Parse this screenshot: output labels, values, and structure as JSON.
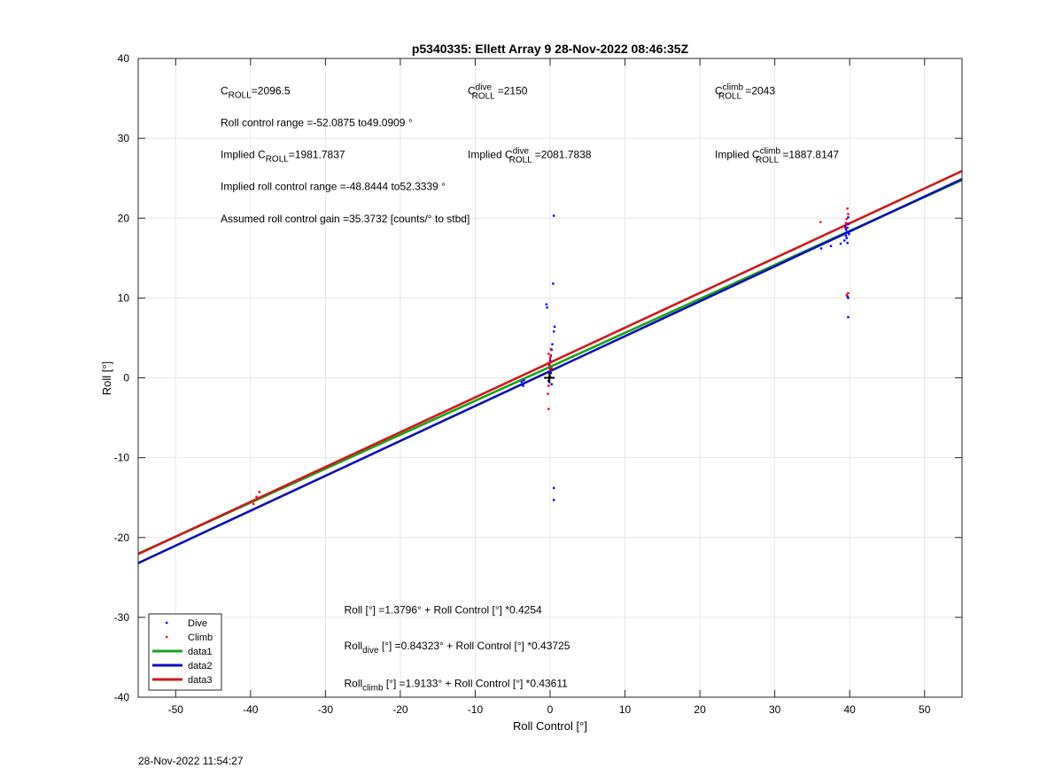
{
  "footer_timestamp": "28-Nov-2022 11:54:27",
  "chart_data": {
    "type": "scatter",
    "title": "p5340335: Ellett Array 9 28-Nov-2022 08:46:35Z",
    "xlabel": "Roll Control [°]",
    "ylabel": "Roll [°]",
    "xlim": [
      -55,
      55
    ],
    "ylim": [
      -40,
      40
    ],
    "xticks": [
      -50,
      -40,
      -30,
      -20,
      -10,
      0,
      10,
      20,
      30,
      40,
      50
    ],
    "yticks": [
      -40,
      -30,
      -20,
      -10,
      0,
      10,
      20,
      30,
      40
    ],
    "grid": true,
    "legend_position": "bottom-left",
    "colors": {
      "dive": "#0000ff",
      "climb": "#ff0000",
      "data1": "#1aa31a",
      "data2": "#0c10b4",
      "data3": "#cc1a1a",
      "marker": "#000000"
    },
    "legend": [
      {
        "label": "Dive",
        "style": "dot",
        "color": "#0000ff"
      },
      {
        "label": "Climb",
        "style": "dot",
        "color": "#ff0000"
      },
      {
        "label": "data1",
        "style": "line",
        "color": "#1aa31a"
      },
      {
        "label": "data2",
        "style": "line",
        "color": "#0c10b4"
      },
      {
        "label": "data3",
        "style": "line",
        "color": "#cc1a1a"
      }
    ],
    "fit_lines": [
      {
        "name": "data1",
        "intercept": 1.3796,
        "slope": 0.4254
      },
      {
        "name": "data2",
        "intercept": 0.84323,
        "slope": 0.43725
      },
      {
        "name": "data3",
        "intercept": 1.9133,
        "slope": 0.43611
      }
    ],
    "series": [
      {
        "name": "Dive",
        "points": [
          [
            -3.8,
            -0.5
          ],
          [
            -3.6,
            -1.0
          ],
          [
            -3.5,
            -0.3
          ],
          [
            -0.5,
            9.2
          ],
          [
            -0.4,
            8.8
          ],
          [
            0.5,
            20.3
          ],
          [
            0.4,
            11.8
          ],
          [
            0.6,
            6.4
          ],
          [
            0.5,
            5.8
          ],
          [
            0.3,
            4.2
          ],
          [
            0.2,
            3.5
          ],
          [
            0.1,
            2.8
          ],
          [
            0.0,
            2.2
          ],
          [
            -0.1,
            1.6
          ],
          [
            0.0,
            1.1
          ],
          [
            0.1,
            0.6
          ],
          [
            0.0,
            0.2
          ],
          [
            -0.2,
            -0.4
          ],
          [
            0.2,
            -0.8
          ],
          [
            0.5,
            -13.8
          ],
          [
            0.5,
            -15.3
          ],
          [
            36.2,
            16.2
          ],
          [
            37.5,
            16.5
          ],
          [
            38.8,
            16.8
          ],
          [
            39.3,
            17.2
          ],
          [
            39.5,
            17.8
          ],
          [
            39.6,
            18.3
          ],
          [
            39.7,
            18.8
          ],
          [
            39.8,
            19.3
          ],
          [
            39.6,
            17.5
          ],
          [
            39.7,
            16.9
          ],
          [
            39.9,
            18.0
          ],
          [
            39.4,
            19.0
          ],
          [
            39.8,
            20.1
          ],
          [
            39.5,
            18.6
          ],
          [
            39.7,
            10.2
          ],
          [
            39.8,
            10.0
          ],
          [
            39.8,
            7.6
          ]
        ]
      },
      {
        "name": "Climb",
        "points": [
          [
            -39.6,
            -15.8
          ],
          [
            -38.8,
            -14.3
          ],
          [
            -39.2,
            -14.9
          ],
          [
            -0.2,
            -3.9
          ],
          [
            -0.3,
            -2.0
          ],
          [
            -0.2,
            -1.0
          ],
          [
            -0.1,
            0.5
          ],
          [
            0.0,
            1.0
          ],
          [
            -0.1,
            1.5
          ],
          [
            0.1,
            2.0
          ],
          [
            0.0,
            2.5
          ],
          [
            -0.2,
            3.0
          ],
          [
            0.1,
            3.6
          ],
          [
            -0.3,
            1.8
          ],
          [
            0.2,
            1.2
          ],
          [
            0.1,
            2.7
          ],
          [
            36.1,
            19.5
          ],
          [
            39.5,
            19.4
          ],
          [
            39.6,
            19.9
          ],
          [
            39.8,
            20.5
          ],
          [
            39.7,
            21.2
          ],
          [
            39.4,
            18.8
          ],
          [
            39.8,
            10.6
          ],
          [
            39.6,
            10.4
          ]
        ]
      }
    ],
    "origin_marker": [
      -0.1,
      0.0
    ],
    "annotations": [
      {
        "base": "C",
        "sub": "ROLL",
        "sup": "",
        "value": "=2096.5",
        "pos": [
          -44,
          35.5
        ]
      },
      {
        "base": "C",
        "sub": "ROLL",
        "sup": "dive",
        "value": "=2150",
        "pos": [
          -11,
          35.5
        ]
      },
      {
        "base": "C",
        "sub": "ROLL",
        "sup": "climb",
        "value": "=2043",
        "pos": [
          22,
          35.5
        ]
      },
      {
        "text": "Roll control range =-52.0875 to49.0909 °",
        "pos": [
          -44,
          31.5
        ]
      },
      {
        "prefix": "Implied ",
        "base": "C",
        "sub": "ROLL",
        "sup": "",
        "value": "=1981.7837",
        "pos": [
          -44,
          27.5
        ]
      },
      {
        "prefix": "Implied ",
        "base": "C",
        "sub": "ROLL",
        "sup": "dive",
        "value": "=2081.7838",
        "pos": [
          -11,
          27.5
        ]
      },
      {
        "prefix": "Implied ",
        "base": "C",
        "sub": "ROLL",
        "sup": "climb",
        "value": "=1887.8147",
        "pos": [
          22,
          27.5
        ]
      },
      {
        "text": "Implied roll control range =-48.8444 to52.3339 °",
        "pos": [
          -44,
          23.5
        ]
      },
      {
        "text": "Assumed roll control gain =35.3732 [counts/° to stbd]",
        "pos": [
          -44,
          19.5
        ]
      },
      {
        "text": "Roll [°] =1.3796° + Roll Control [°] *0.4254",
        "pos": [
          -27.5,
          -29.5
        ]
      },
      {
        "base": "Roll",
        "sub": "dive",
        "value": " [°] =0.84323° + Roll Control [°] *0.43725",
        "pos": [
          -27.5,
          -34
        ]
      },
      {
        "base": "Roll",
        "sub": "climb",
        "value": " [°] =1.9133° + Roll Control [°] *0.43611",
        "pos": [
          -27.5,
          -38.7
        ]
      }
    ]
  }
}
